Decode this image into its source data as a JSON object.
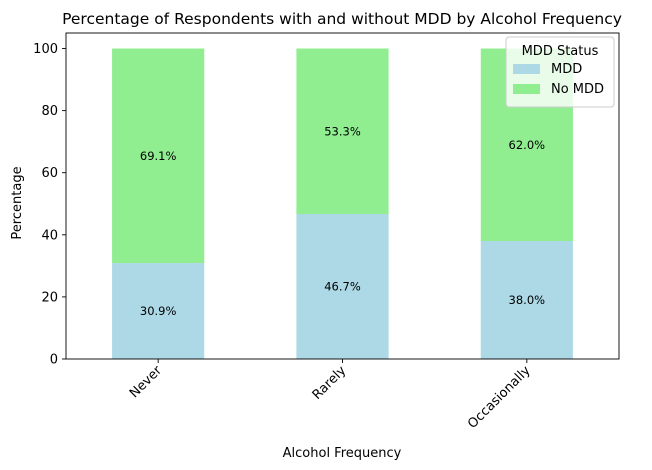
{
  "chart_data": {
    "type": "bar",
    "stacked": true,
    "title": "Percentage of Respondents with and without MDD by Alcohol Frequency",
    "xlabel": "Alcohol Frequency",
    "ylabel": "Percentage",
    "ylim": [
      0,
      105
    ],
    "yticks": [
      0,
      20,
      40,
      60,
      80,
      100
    ],
    "categories": [
      "Never",
      "Rarely",
      "Occasionally"
    ],
    "series": [
      {
        "name": "MDD",
        "color": "#add8e6",
        "values": [
          30.9,
          46.7,
          38.0
        ],
        "labels": [
          "30.9%",
          "46.7%",
          "38.0%"
        ]
      },
      {
        "name": "No MDD",
        "color": "#90ee90",
        "values": [
          69.1,
          53.3,
          62.0
        ],
        "labels": [
          "69.1%",
          "53.3%",
          "62.0%"
        ]
      }
    ],
    "legend": {
      "title": "MDD Status",
      "position": "top-right"
    },
    "grid": false
  }
}
